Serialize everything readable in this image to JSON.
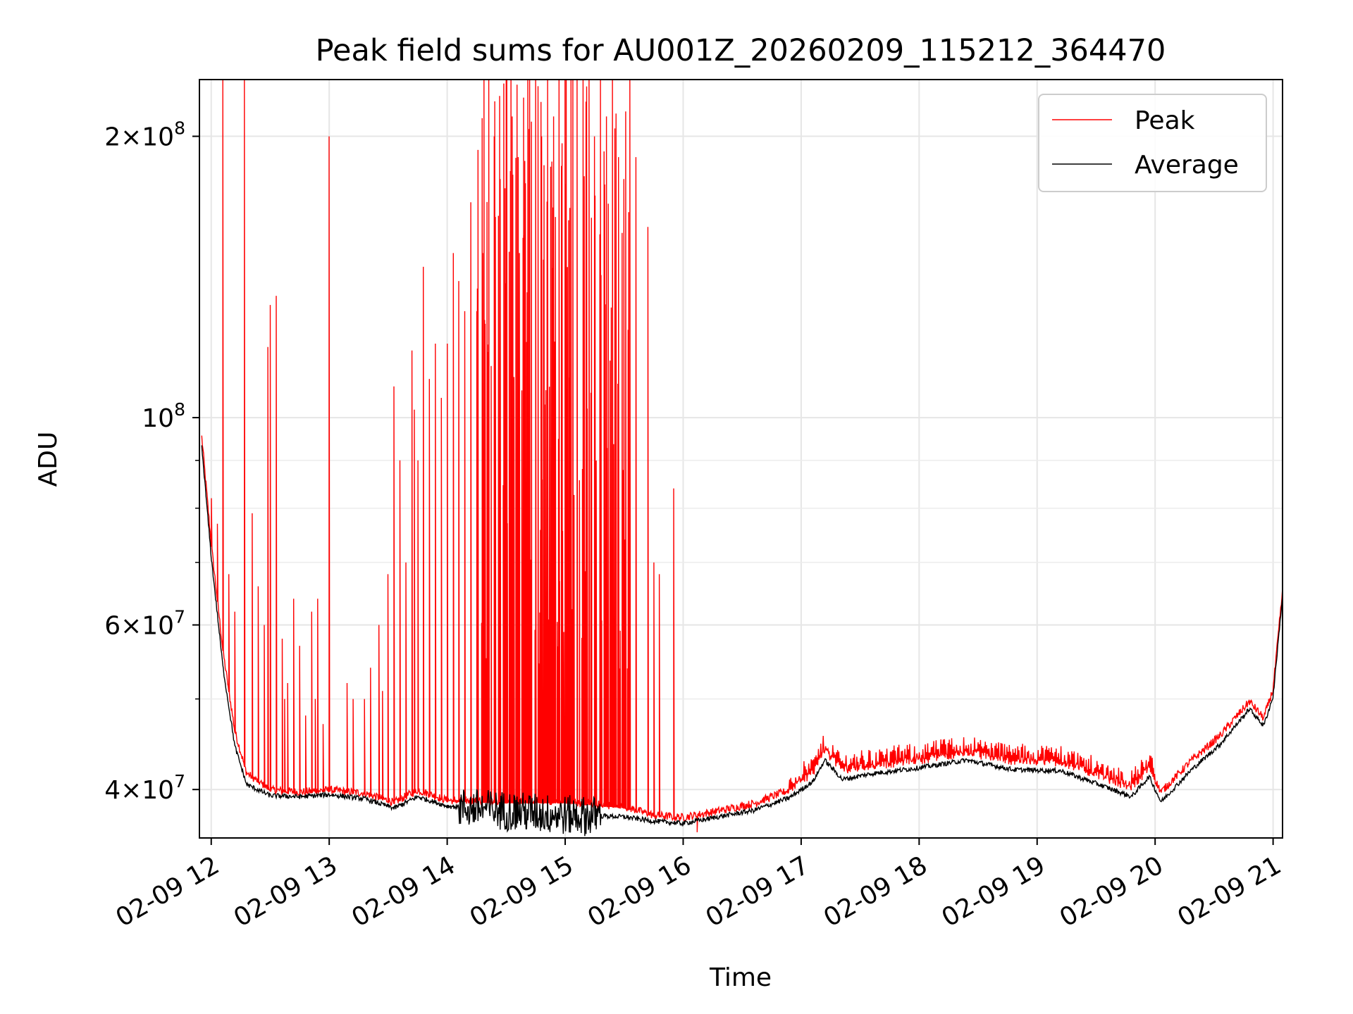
{
  "chart_data": {
    "type": "line",
    "title": "Peak field sums for AU001Z_20260209_115212_364470",
    "xlabel": "Time",
    "ylabel": "ADU",
    "x_unit": "hour of 2026-02-09",
    "xlim": [
      11.9,
      21.08
    ],
    "ylim": [
      35500000,
      230000000
    ],
    "yscale": "log",
    "grid": true,
    "legend_position": "top-right",
    "x_ticks": [
      {
        "value": 12,
        "label": "02-09 12"
      },
      {
        "value": 13,
        "label": "02-09 13"
      },
      {
        "value": 14,
        "label": "02-09 14"
      },
      {
        "value": 15,
        "label": "02-09 15"
      },
      {
        "value": 16,
        "label": "02-09 16"
      },
      {
        "value": 17,
        "label": "02-09 17"
      },
      {
        "value": 18,
        "label": "02-09 18"
      },
      {
        "value": 19,
        "label": "02-09 19"
      },
      {
        "value": 20,
        "label": "02-09 20"
      },
      {
        "value": 21,
        "label": "02-09 21"
      }
    ],
    "y_ticks": [
      {
        "value": 40000000,
        "mantissa": "4",
        "exponent": "7"
      },
      {
        "value": 60000000,
        "mantissa": "6",
        "exponent": "7"
      },
      {
        "value": 100000000,
        "mantissa": "",
        "exponent": "8"
      },
      {
        "value": 200000000,
        "mantissa": "2",
        "exponent": "8"
      }
    ],
    "y_minor_ticks": [
      50000000,
      70000000,
      80000000,
      90000000
    ],
    "series": [
      {
        "name": "Peak",
        "color": "#ff0000",
        "baseline": {
          "x": [
            11.92,
            12.0,
            12.1,
            12.2,
            12.3,
            12.5,
            12.75,
            13.0,
            13.3,
            13.55,
            13.75,
            14.0,
            14.5,
            15.0,
            15.5,
            15.75,
            16.0,
            16.3,
            16.6,
            16.9,
            17.1,
            17.2,
            17.35,
            17.6,
            18.0,
            18.4,
            18.8,
            19.2,
            19.5,
            19.8,
            19.95,
            20.05,
            20.3,
            20.55,
            20.8,
            20.92,
            21.0,
            21.08
          ],
          "y": [
            95000000,
            73000000,
            56000000,
            46000000,
            41500000,
            39800000,
            39600000,
            39800000,
            39500000,
            38600000,
            39800000,
            38800000,
            38700000,
            38700000,
            38200000,
            37400000,
            37200000,
            37800000,
            38500000,
            39800000,
            41500000,
            43800000,
            41800000,
            42200000,
            42800000,
            43600000,
            42700000,
            42600000,
            41300000,
            40000000,
            42000000,
            39600000,
            42700000,
            45500000,
            49500000,
            47500000,
            51000000,
            65000000
          ]
        },
        "spikes": {
          "x": [
            12.0,
            12.05,
            12.1,
            12.15,
            12.2,
            12.28,
            12.35,
            12.4,
            12.45,
            12.48,
            12.5,
            12.55,
            12.6,
            12.62,
            12.65,
            12.7,
            12.75,
            12.8,
            12.85,
            12.88,
            12.9,
            12.95,
            13.0,
            13.15,
            13.2,
            13.3,
            13.35,
            13.42,
            13.45,
            13.5,
            13.55,
            13.6,
            13.65,
            13.7,
            13.72,
            13.75,
            13.8,
            13.85,
            13.9,
            13.95,
            14.0,
            14.05,
            14.1,
            14.15,
            14.2,
            14.25,
            14.3,
            14.35,
            14.4,
            14.45,
            14.5,
            14.55,
            14.6,
            14.65,
            14.7,
            14.75,
            14.8,
            14.85,
            14.9,
            14.95,
            15.0,
            15.05,
            15.1,
            15.15,
            15.2,
            15.25,
            15.3,
            15.35,
            15.4,
            15.45,
            15.5,
            15.55,
            15.6,
            15.7,
            15.75,
            15.8,
            15.92,
            16.12
          ],
          "y": [
            82000000,
            77000000,
            230000000,
            68000000,
            62000000,
            230000000,
            79000000,
            66000000,
            60000000,
            119000000,
            132000000,
            135000000,
            58000000,
            50000000,
            52000000,
            64000000,
            57000000,
            48000000,
            62000000,
            50000000,
            64000000,
            47000000,
            200000000,
            52000000,
            50000000,
            50000000,
            54000000,
            60000000,
            51000000,
            68000000,
            108000000,
            90000000,
            70000000,
            118000000,
            102000000,
            90000000,
            145000000,
            110000000,
            120000000,
            105000000,
            120000000,
            150000000,
            140000000,
            130000000,
            170000000,
            130000000,
            150000000,
            230000000,
            200000000,
            180000000,
            230000000,
            210000000,
            190000000,
            220000000,
            230000000,
            230000000,
            200000000,
            230000000,
            210000000,
            230000000,
            230000000,
            230000000,
            230000000,
            230000000,
            230000000,
            200000000,
            230000000,
            210000000,
            230000000,
            190000000,
            180000000,
            230000000,
            190000000,
            160000000,
            70000000,
            68000000,
            84000000,
            36000000
          ]
        }
      },
      {
        "name": "Average",
        "color": "#000000",
        "baseline": {
          "x": [
            11.92,
            12.0,
            12.1,
            12.2,
            12.3,
            12.5,
            12.75,
            13.0,
            13.3,
            13.55,
            13.75,
            14.0,
            14.5,
            15.0,
            15.5,
            15.75,
            16.0,
            16.3,
            16.6,
            16.9,
            17.1,
            17.2,
            17.35,
            17.6,
            18.0,
            18.4,
            18.8,
            19.2,
            19.5,
            19.8,
            19.95,
            20.05,
            20.3,
            20.55,
            20.8,
            20.92,
            21.0,
            21.08
          ],
          "y": [
            93000000,
            71000000,
            54000000,
            44500000,
            40500000,
            39400000,
            39300000,
            39500000,
            39100000,
            38200000,
            39300000,
            38400000,
            38000000,
            37600000,
            37400000,
            37000000,
            36800000,
            37400000,
            38000000,
            39200000,
            40800000,
            43000000,
            41000000,
            41600000,
            42200000,
            43000000,
            42000000,
            41900000,
            40600000,
            39300000,
            41300000,
            38800000,
            41900000,
            44700000,
            48800000,
            46800000,
            50300000,
            64500000
          ]
        },
        "noise_segment": {
          "x_start": 14.1,
          "x_end": 15.3,
          "amplitude_fraction": 0.05
        }
      }
    ]
  }
}
